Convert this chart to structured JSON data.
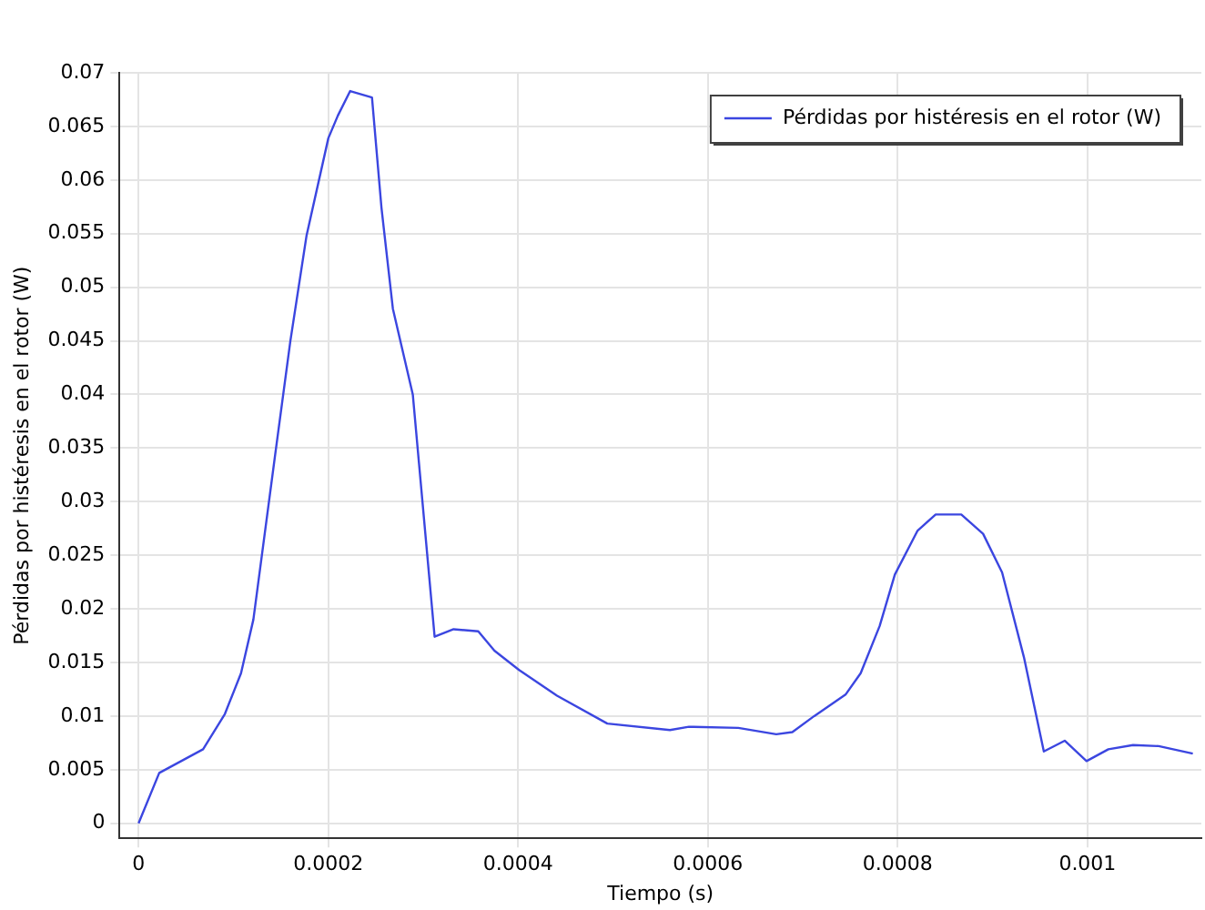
{
  "chart_data": {
    "type": "line",
    "xlabel": "Tiempo (s)",
    "ylabel": "Pérdidas por histéresis en el rotor (W)",
    "series": [
      {
        "name": "Pérdidas por histéresis en el rotor (W)",
        "color": "#3b46e0",
        "x": [
          0,
          2.18e-05,
          6.8e-05,
          9.1e-05,
          0.000108,
          0.000121,
          0.000144,
          0.00016,
          0.000177,
          0.0002,
          0.00021,
          0.000223,
          0.000246,
          0.000256,
          0.000268,
          0.000289,
          0.000312,
          0.000332,
          0.000358,
          0.000375,
          0.000401,
          0.000441,
          0.000494,
          0.00056,
          0.00058,
          0.000632,
          0.000672,
          0.000689,
          0.000712,
          0.000745,
          0.000761,
          0.000781,
          0.000797,
          0.000821,
          0.00084,
          0.000867,
          0.00089,
          0.00091,
          0.000933,
          0.000954,
          0.000976,
          0.000999,
          0.001022,
          0.001048,
          0.001075,
          0.001111
        ],
        "values": [
          0,
          0.0047,
          0.0069,
          0.0102,
          0.014,
          0.019,
          0.0344,
          0.045,
          0.0548,
          0.0639,
          0.066,
          0.0683,
          0.0677,
          0.0574,
          0.048,
          0.04,
          0.0174,
          0.0181,
          0.0179,
          0.0161,
          0.0143,
          0.0119,
          0.0093,
          0.0087,
          0.009,
          0.0089,
          0.0083,
          0.0085,
          0.01,
          0.012,
          0.014,
          0.0184,
          0.0232,
          0.0273,
          0.0288,
          0.0288,
          0.027,
          0.0234,
          0.0155,
          0.0067,
          0.0077,
          0.0058,
          0.0069,
          0.0073,
          0.0072,
          0.0065
        ]
      }
    ],
    "xlim": [
      -2e-05,
      0.00112
    ],
    "xticks": [
      0,
      0.0002,
      0.0004,
      0.0006,
      0.0008,
      0.001
    ],
    "ylim": [
      -0.0014,
      0.07
    ],
    "yticks": [
      0,
      0.005,
      0.01,
      0.015,
      0.02,
      0.025,
      0.03,
      0.035,
      0.04,
      0.045,
      0.05,
      0.055,
      0.06,
      0.065,
      0.07
    ],
    "grid": true,
    "legend": "top right",
    "marker": "none",
    "line_style": "solid"
  }
}
